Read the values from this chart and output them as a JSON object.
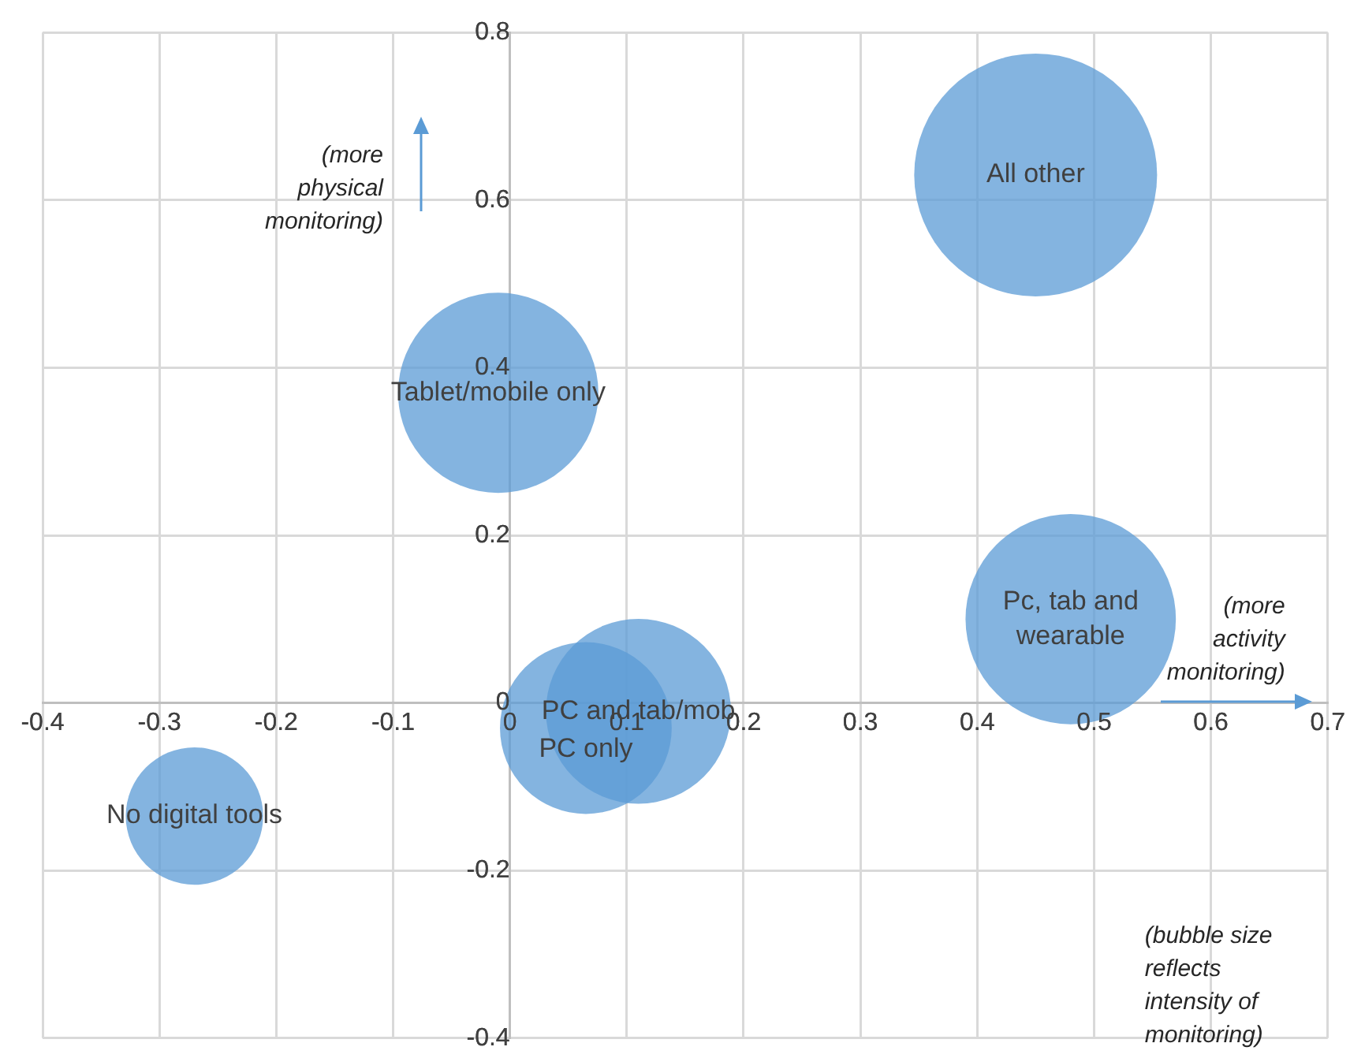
{
  "chart_data": {
    "type": "bubble",
    "series": [
      {
        "name": "All other",
        "color": "#5b9bd5",
        "x": [
          0.45
        ],
        "values": [
          0.63
        ],
        "sizes": [
          1
        ]
      },
      {
        "name": "Tablet/mobile only",
        "color": "#5b9bd5",
        "x": [
          -0.01
        ],
        "values": [
          0.37
        ],
        "sizes": [
          0.68
        ]
      },
      {
        "name": "Pc, tab and wearable",
        "color": "#5b9bd5",
        "x": [
          0.48
        ],
        "values": [
          0.1
        ],
        "sizes": [
          0.75
        ]
      },
      {
        "name": "PC and tab/mob",
        "color": "#5b9bd5",
        "x": [
          0.11
        ],
        "values": [
          -0.01
        ],
        "sizes": [
          0.58
        ]
      },
      {
        "name": "PC only",
        "color": "#5b9bd5",
        "x": [
          0.065
        ],
        "values": [
          -0.03
        ],
        "sizes": [
          0.5
        ]
      },
      {
        "name": "No digital tools",
        "color": "#5b9bd5",
        "x": [
          -0.27
        ],
        "values": [
          -0.135
        ],
        "sizes": [
          0.32
        ]
      }
    ],
    "xlim": [
      -0.4,
      0.7
    ],
    "xticks": [
      -0.4,
      -0.3,
      -0.2,
      -0.1,
      0,
      0.1,
      0.2,
      0.3,
      0.4,
      0.5,
      0.6,
      0.7
    ],
    "ylim": [
      -0.4,
      0.8
    ],
    "yticks": [
      -0.4,
      -0.2,
      0,
      0.2,
      0.4,
      0.6,
      0.8
    ],
    "grid": true,
    "legend": false,
    "annotations": [
      "(more physical monitoring)",
      "(more activity monitoring)",
      "(bubble size reflects intensity of monitoring)"
    ]
  }
}
